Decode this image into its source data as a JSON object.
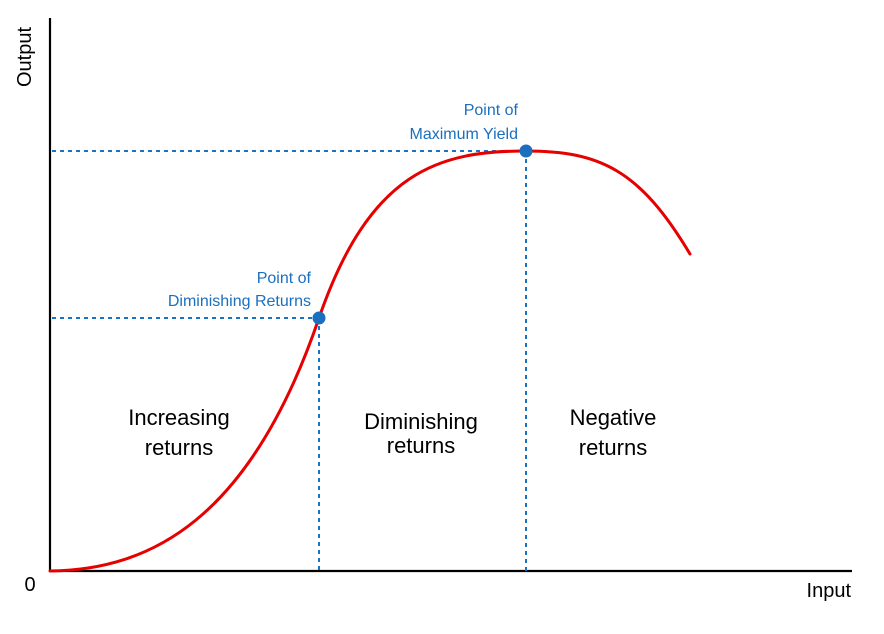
{
  "colors": {
    "curve": "#e60000",
    "guide": "#1a73c0",
    "marker": "#1a6fbf",
    "annotation": "#1a6fbf",
    "axis": "#000000"
  },
  "axes": {
    "x_label": "Input",
    "y_label": "Output",
    "origin_label": "0"
  },
  "points": [
    {
      "id": "diminishing",
      "label_lines": [
        "Point of",
        "Diminishing Returns"
      ]
    },
    {
      "id": "maximum",
      "label_lines": [
        "Point of",
        "Maximum Yield"
      ]
    }
  ],
  "regions": [
    {
      "id": "increasing",
      "label_lines": [
        "Increasing",
        "returns"
      ]
    },
    {
      "id": "diminishing",
      "label_lines": [
        "Diminishing",
        "returns"
      ]
    },
    {
      "id": "negative",
      "label_lines": [
        "Negative",
        "returns"
      ]
    }
  ]
}
